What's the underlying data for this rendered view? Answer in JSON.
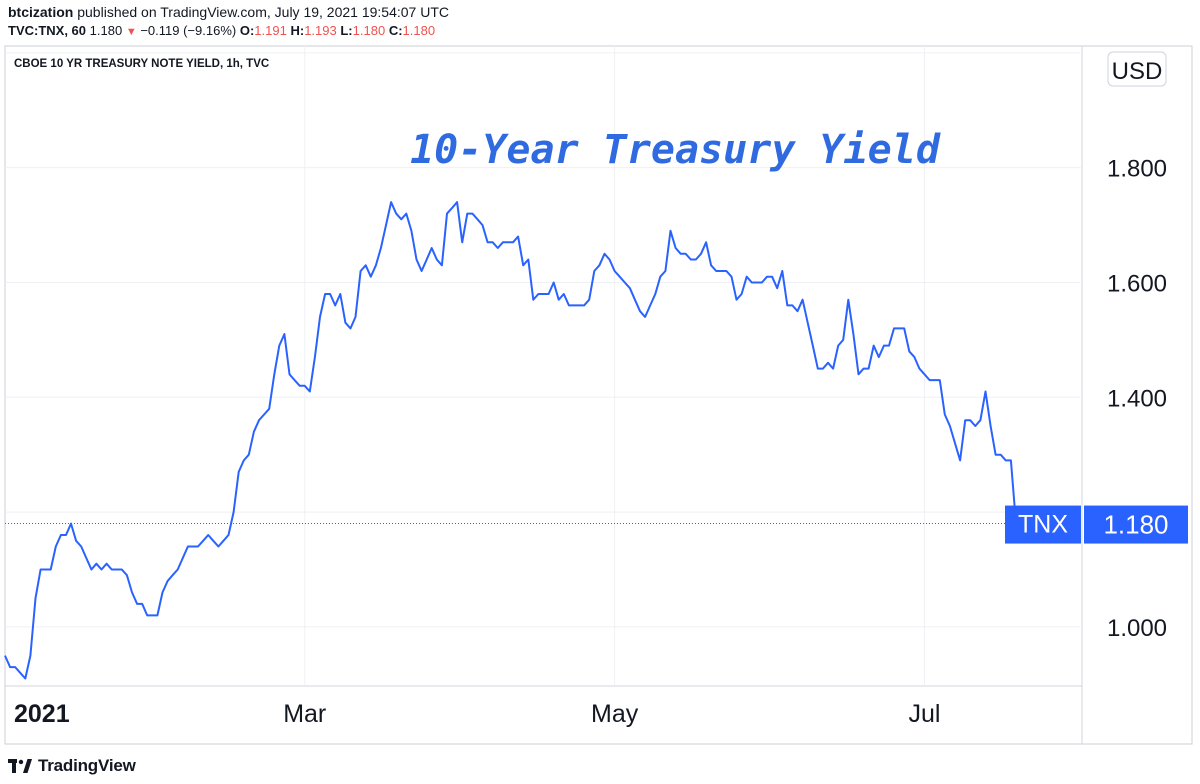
{
  "header": {
    "publisher": "btcization",
    "published_text": "published on TradingView.com, July 19, 2021 19:54:07 UTC",
    "symbol": "TVC:TNX, 60",
    "last": "1.180",
    "change": "−0.119 (−9.16%)",
    "o_label": "O:",
    "o_value": "1.191",
    "h_label": "H:",
    "h_value": "1.193",
    "l_label": "L:",
    "l_value": "1.180",
    "c_label": "C:",
    "c_value": "1.180"
  },
  "footer": {
    "brand": "TradingView"
  },
  "colors": {
    "line": "#2962ff",
    "title": "#2f6ae0",
    "badge": "#2962ff",
    "down": "#ef5350",
    "grid": "#eef0f3"
  },
  "chart_data": {
    "type": "line",
    "instrument_title": "CBOE 10 YR TREASURY NOTE YIELD, 1h, TVC",
    "title": "10-Year Treasury Yield",
    "currency": "USD",
    "y_ticks": [
      1.0,
      1.2,
      1.4,
      1.6,
      1.8,
      2.0
    ],
    "y_tick_labels": [
      "1.000",
      "",
      "1.400",
      "1.600",
      "1.800",
      ""
    ],
    "ylim": [
      0.897,
      2.012
    ],
    "x_ticks": [
      {
        "label": "2021",
        "x": "2021-01-01",
        "bold": true
      },
      {
        "label": "Mar",
        "x": "2021-03-01"
      },
      {
        "label": "May",
        "x": "2021-05-01"
      },
      {
        "label": "Jul",
        "x": "2021-07-01"
      }
    ],
    "xlim": [
      "2021-01-01",
      "2021-08-01"
    ],
    "last_value_label": {
      "name": "TNX",
      "value": "1.180"
    },
    "series": [
      {
        "values": [
          [
            "2021-01-01",
            0.95
          ],
          [
            "2021-01-02",
            0.93
          ],
          [
            "2021-01-03",
            0.93
          ],
          [
            "2021-01-04",
            0.92
          ],
          [
            "2021-01-05",
            0.91
          ],
          [
            "2021-01-06",
            0.95
          ],
          [
            "2021-01-07",
            1.05
          ],
          [
            "2021-01-08",
            1.1
          ],
          [
            "2021-01-09",
            1.1
          ],
          [
            "2021-01-10",
            1.1
          ],
          [
            "2021-01-11",
            1.14
          ],
          [
            "2021-01-12",
            1.16
          ],
          [
            "2021-01-13",
            1.16
          ],
          [
            "2021-01-14",
            1.18
          ],
          [
            "2021-01-15",
            1.15
          ],
          [
            "2021-01-16",
            1.14
          ],
          [
            "2021-01-17",
            1.12
          ],
          [
            "2021-01-18",
            1.1
          ],
          [
            "2021-01-19",
            1.11
          ],
          [
            "2021-01-20",
            1.1
          ],
          [
            "2021-01-21",
            1.11
          ],
          [
            "2021-01-22",
            1.1
          ],
          [
            "2021-01-23",
            1.1
          ],
          [
            "2021-01-24",
            1.1
          ],
          [
            "2021-01-25",
            1.09
          ],
          [
            "2021-01-26",
            1.06
          ],
          [
            "2021-01-27",
            1.04
          ],
          [
            "2021-01-28",
            1.04
          ],
          [
            "2021-01-29",
            1.02
          ],
          [
            "2021-01-30",
            1.02
          ],
          [
            "2021-01-31",
            1.02
          ],
          [
            "2021-02-01",
            1.06
          ],
          [
            "2021-02-02",
            1.08
          ],
          [
            "2021-02-03",
            1.09
          ],
          [
            "2021-02-04",
            1.1
          ],
          [
            "2021-02-05",
            1.12
          ],
          [
            "2021-02-06",
            1.14
          ],
          [
            "2021-02-07",
            1.14
          ],
          [
            "2021-02-08",
            1.14
          ],
          [
            "2021-02-09",
            1.15
          ],
          [
            "2021-02-10",
            1.16
          ],
          [
            "2021-02-11",
            1.15
          ],
          [
            "2021-02-12",
            1.14
          ],
          [
            "2021-02-13",
            1.15
          ],
          [
            "2021-02-14",
            1.16
          ],
          [
            "2021-02-15",
            1.2
          ],
          [
            "2021-02-16",
            1.27
          ],
          [
            "2021-02-17",
            1.29
          ],
          [
            "2021-02-18",
            1.3
          ],
          [
            "2021-02-19",
            1.34
          ],
          [
            "2021-02-20",
            1.36
          ],
          [
            "2021-02-21",
            1.37
          ],
          [
            "2021-02-22",
            1.38
          ],
          [
            "2021-02-23",
            1.44
          ],
          [
            "2021-02-24",
            1.49
          ],
          [
            "2021-02-25",
            1.51
          ],
          [
            "2021-02-26",
            1.44
          ],
          [
            "2021-02-27",
            1.43
          ],
          [
            "2021-02-28",
            1.42
          ],
          [
            "2021-03-01",
            1.42
          ],
          [
            "2021-03-02",
            1.41
          ],
          [
            "2021-03-03",
            1.47
          ],
          [
            "2021-03-04",
            1.54
          ],
          [
            "2021-03-05",
            1.58
          ],
          [
            "2021-03-06",
            1.58
          ],
          [
            "2021-03-07",
            1.56
          ],
          [
            "2021-03-08",
            1.58
          ],
          [
            "2021-03-09",
            1.53
          ],
          [
            "2021-03-10",
            1.52
          ],
          [
            "2021-03-11",
            1.54
          ],
          [
            "2021-03-12",
            1.62
          ],
          [
            "2021-03-13",
            1.63
          ],
          [
            "2021-03-14",
            1.61
          ],
          [
            "2021-03-15",
            1.63
          ],
          [
            "2021-03-16",
            1.66
          ],
          [
            "2021-03-17",
            1.7
          ],
          [
            "2021-03-18",
            1.74
          ],
          [
            "2021-03-19",
            1.72
          ],
          [
            "2021-03-20",
            1.71
          ],
          [
            "2021-03-21",
            1.72
          ],
          [
            "2021-03-22",
            1.69
          ],
          [
            "2021-03-23",
            1.64
          ],
          [
            "2021-03-24",
            1.62
          ],
          [
            "2021-03-25",
            1.64
          ],
          [
            "2021-03-26",
            1.66
          ],
          [
            "2021-03-27",
            1.64
          ],
          [
            "2021-03-28",
            1.63
          ],
          [
            "2021-03-29",
            1.72
          ],
          [
            "2021-03-30",
            1.73
          ],
          [
            "2021-03-31",
            1.74
          ],
          [
            "2021-04-01",
            1.67
          ],
          [
            "2021-04-02",
            1.72
          ],
          [
            "2021-04-03",
            1.72
          ],
          [
            "2021-04-04",
            1.71
          ],
          [
            "2021-04-05",
            1.7
          ],
          [
            "2021-04-06",
            1.67
          ],
          [
            "2021-04-07",
            1.67
          ],
          [
            "2021-04-08",
            1.66
          ],
          [
            "2021-04-09",
            1.67
          ],
          [
            "2021-04-10",
            1.67
          ],
          [
            "2021-04-11",
            1.67
          ],
          [
            "2021-04-12",
            1.68
          ],
          [
            "2021-04-13",
            1.63
          ],
          [
            "2021-04-14",
            1.64
          ],
          [
            "2021-04-15",
            1.57
          ],
          [
            "2021-04-16",
            1.58
          ],
          [
            "2021-04-17",
            1.58
          ],
          [
            "2021-04-18",
            1.58
          ],
          [
            "2021-04-19",
            1.6
          ],
          [
            "2021-04-20",
            1.57
          ],
          [
            "2021-04-21",
            1.58
          ],
          [
            "2021-04-22",
            1.56
          ],
          [
            "2021-04-23",
            1.56
          ],
          [
            "2021-04-24",
            1.56
          ],
          [
            "2021-04-25",
            1.56
          ],
          [
            "2021-04-26",
            1.57
          ],
          [
            "2021-04-27",
            1.62
          ],
          [
            "2021-04-28",
            1.63
          ],
          [
            "2021-04-29",
            1.65
          ],
          [
            "2021-04-30",
            1.64
          ],
          [
            "2021-05-01",
            1.62
          ],
          [
            "2021-05-02",
            1.61
          ],
          [
            "2021-05-03",
            1.6
          ],
          [
            "2021-05-04",
            1.59
          ],
          [
            "2021-05-05",
            1.57
          ],
          [
            "2021-05-06",
            1.55
          ],
          [
            "2021-05-07",
            1.54
          ],
          [
            "2021-05-08",
            1.56
          ],
          [
            "2021-05-09",
            1.58
          ],
          [
            "2021-05-10",
            1.61
          ],
          [
            "2021-05-11",
            1.62
          ],
          [
            "2021-05-12",
            1.69
          ],
          [
            "2021-05-13",
            1.66
          ],
          [
            "2021-05-14",
            1.65
          ],
          [
            "2021-05-15",
            1.65
          ],
          [
            "2021-05-16",
            1.64
          ],
          [
            "2021-05-17",
            1.64
          ],
          [
            "2021-05-18",
            1.65
          ],
          [
            "2021-05-19",
            1.67
          ],
          [
            "2021-05-20",
            1.63
          ],
          [
            "2021-05-21",
            1.62
          ],
          [
            "2021-05-22",
            1.62
          ],
          [
            "2021-05-23",
            1.62
          ],
          [
            "2021-05-24",
            1.61
          ],
          [
            "2021-05-25",
            1.57
          ],
          [
            "2021-05-26",
            1.58
          ],
          [
            "2021-05-27",
            1.61
          ],
          [
            "2021-05-28",
            1.6
          ],
          [
            "2021-05-29",
            1.6
          ],
          [
            "2021-05-30",
            1.6
          ],
          [
            "2021-05-31",
            1.61
          ],
          [
            "2021-06-01",
            1.61
          ],
          [
            "2021-06-02",
            1.59
          ],
          [
            "2021-06-03",
            1.62
          ],
          [
            "2021-06-04",
            1.56
          ],
          [
            "2021-06-05",
            1.56
          ],
          [
            "2021-06-06",
            1.55
          ],
          [
            "2021-06-07",
            1.57
          ],
          [
            "2021-06-08",
            1.53
          ],
          [
            "2021-06-09",
            1.49
          ],
          [
            "2021-06-10",
            1.45
          ],
          [
            "2021-06-11",
            1.45
          ],
          [
            "2021-06-12",
            1.46
          ],
          [
            "2021-06-13",
            1.45
          ],
          [
            "2021-06-14",
            1.49
          ],
          [
            "2021-06-15",
            1.5
          ],
          [
            "2021-06-16",
            1.57
          ],
          [
            "2021-06-17",
            1.51
          ],
          [
            "2021-06-18",
            1.44
          ],
          [
            "2021-06-19",
            1.45
          ],
          [
            "2021-06-20",
            1.45
          ],
          [
            "2021-06-21",
            1.49
          ],
          [
            "2021-06-22",
            1.47
          ],
          [
            "2021-06-23",
            1.49
          ],
          [
            "2021-06-24",
            1.49
          ],
          [
            "2021-06-25",
            1.52
          ],
          [
            "2021-06-26",
            1.52
          ],
          [
            "2021-06-27",
            1.52
          ],
          [
            "2021-06-28",
            1.48
          ],
          [
            "2021-06-29",
            1.47
          ],
          [
            "2021-06-30",
            1.45
          ],
          [
            "2021-07-01",
            1.44
          ],
          [
            "2021-07-02",
            1.43
          ],
          [
            "2021-07-03",
            1.43
          ],
          [
            "2021-07-04",
            1.43
          ],
          [
            "2021-07-05",
            1.37
          ],
          [
            "2021-07-06",
            1.35
          ],
          [
            "2021-07-07",
            1.32
          ],
          [
            "2021-07-08",
            1.29
          ],
          [
            "2021-07-09",
            1.36
          ],
          [
            "2021-07-10",
            1.36
          ],
          [
            "2021-07-11",
            1.35
          ],
          [
            "2021-07-12",
            1.36
          ],
          [
            "2021-07-13",
            1.41
          ],
          [
            "2021-07-14",
            1.35
          ],
          [
            "2021-07-15",
            1.3
          ],
          [
            "2021-07-16",
            1.3
          ],
          [
            "2021-07-17",
            1.29
          ],
          [
            "2021-07-18",
            1.29
          ],
          [
            "2021-07-19",
            1.18
          ]
        ]
      }
    ]
  }
}
